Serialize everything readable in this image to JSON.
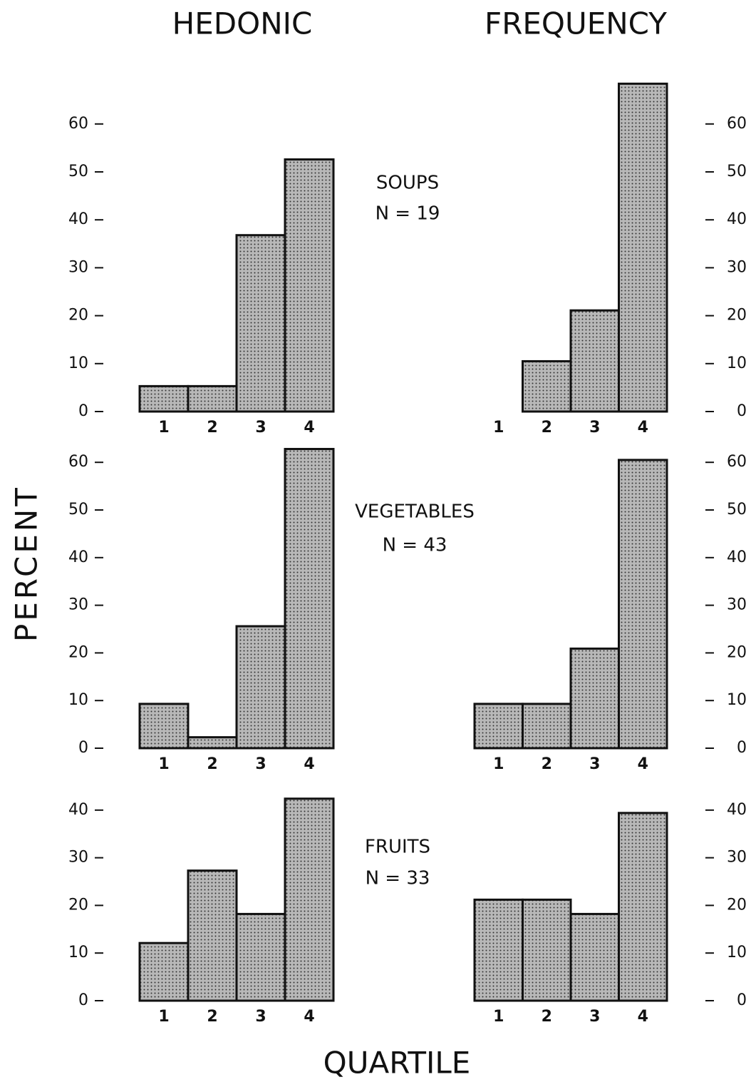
{
  "column_titles": [
    "HEDONIC",
    "FREQUENCY"
  ],
  "y_label": "PERCENT",
  "x_label": "QUARTILE",
  "groups": [
    {
      "name": "SOUPS",
      "n": "N = 19"
    },
    {
      "name": "VEGETABLES",
      "n": "N = 43"
    },
    {
      "name": "FRUITS",
      "n": "N = 33"
    }
  ],
  "chart_data": [
    {
      "type": "bar",
      "categories": [
        "1",
        "2",
        "3",
        "4"
      ],
      "values": [
        5.3,
        5.3,
        36.8,
        52.6
      ],
      "color": "#b8b8b8",
      "ylim": [
        0,
        70
      ],
      "yticks": [
        0,
        10,
        20,
        30,
        40,
        50,
        60
      ]
    },
    {
      "type": "bar",
      "categories": [
        "1",
        "2",
        "3",
        "4"
      ],
      "values": [
        0,
        10.5,
        21.1,
        68.4
      ],
      "color": "#b8b8b8",
      "ylim": [
        0,
        70
      ],
      "yticks": [
        0,
        10,
        20,
        30,
        40,
        50,
        60
      ]
    },
    {
      "type": "bar",
      "categories": [
        "1",
        "2",
        "3",
        "4"
      ],
      "values": [
        9.3,
        2.3,
        25.6,
        62.8
      ],
      "color": "#b8b8b8",
      "ylim": [
        0,
        70
      ],
      "yticks": [
        0,
        10,
        20,
        30,
        40,
        50,
        60
      ]
    },
    {
      "type": "bar",
      "categories": [
        "1",
        "2",
        "3",
        "4"
      ],
      "values": [
        9.3,
        9.3,
        20.9,
        60.5
      ],
      "color": "#b8b8b8",
      "ylim": [
        0,
        70
      ],
      "yticks": [
        0,
        10,
        20,
        30,
        40,
        50,
        60
      ]
    },
    {
      "type": "bar",
      "categories": [
        "1",
        "2",
        "3",
        "4"
      ],
      "values": [
        12.1,
        27.3,
        18.2,
        42.4
      ],
      "color": "#b8b8b8",
      "ylim": [
        0,
        45
      ],
      "yticks": [
        0,
        10,
        20,
        30,
        40
      ]
    },
    {
      "type": "bar",
      "categories": [
        "1",
        "2",
        "3",
        "4"
      ],
      "values": [
        21.2,
        21.2,
        18.2,
        39.4
      ],
      "color": "#b8b8b8",
      "ylim": [
        0,
        45
      ],
      "yticks": [
        0,
        10,
        20,
        30,
        40
      ]
    }
  ]
}
